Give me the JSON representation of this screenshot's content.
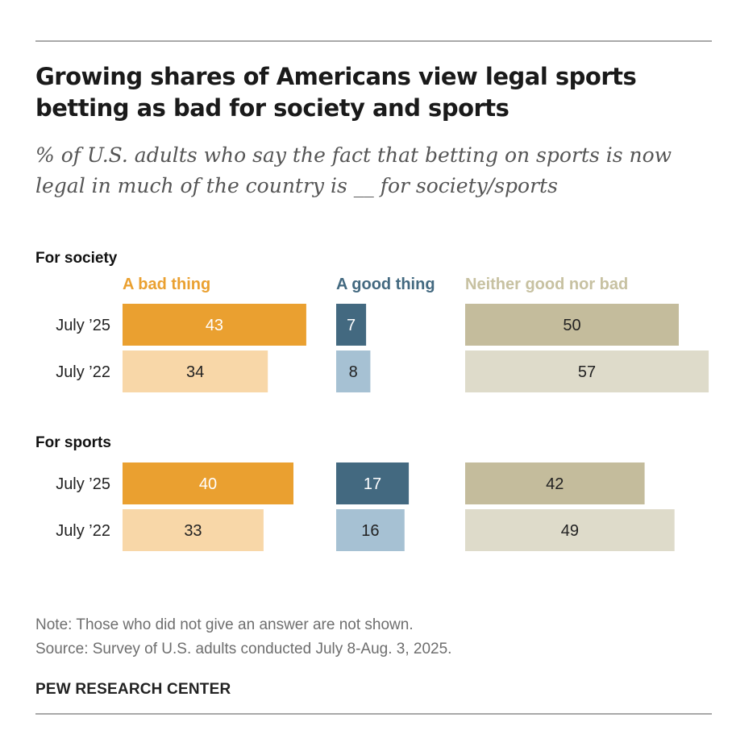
{
  "chart_data": {
    "type": "bar",
    "title": "Growing shares of Americans view legal sports betting as bad for society and sports",
    "subtitle": "% of U.S. adults who say the fact that betting on sports is now legal in much of the country is __ for society/sports",
    "xlim": [
      0,
      100
    ],
    "series": [
      {
        "name": "A bad thing",
        "color": "#eaa030",
        "color_light": "#f8d7a8",
        "label_color": "#eaa030"
      },
      {
        "name": "A good thing",
        "color": "#436980",
        "color_light": "#a6c1d3",
        "label_color": "#436980"
      },
      {
        "name": "Neither good nor bad",
        "color": "#c4bc9c",
        "color_light": "#dedbca",
        "label_color": "#c7c1a1"
      }
    ],
    "groups": [
      {
        "name": "For society",
        "rows": [
          {
            "label": "July ’25",
            "values": [
              43,
              7,
              50
            ]
          },
          {
            "label": "July ’22",
            "values": [
              34,
              8,
              57
            ]
          }
        ]
      },
      {
        "name": "For sports",
        "rows": [
          {
            "label": "July ’25",
            "values": [
              40,
              17,
              42
            ]
          },
          {
            "label": "July ’22",
            "values": [
              33,
              16,
              49
            ]
          }
        ]
      }
    ]
  },
  "note": "Note: Those who did not give an answer are not shown.",
  "source": "Source: Survey of U.S. adults conducted July 8-Aug. 3, 2025.",
  "brand": "PEW RESEARCH CENTER"
}
